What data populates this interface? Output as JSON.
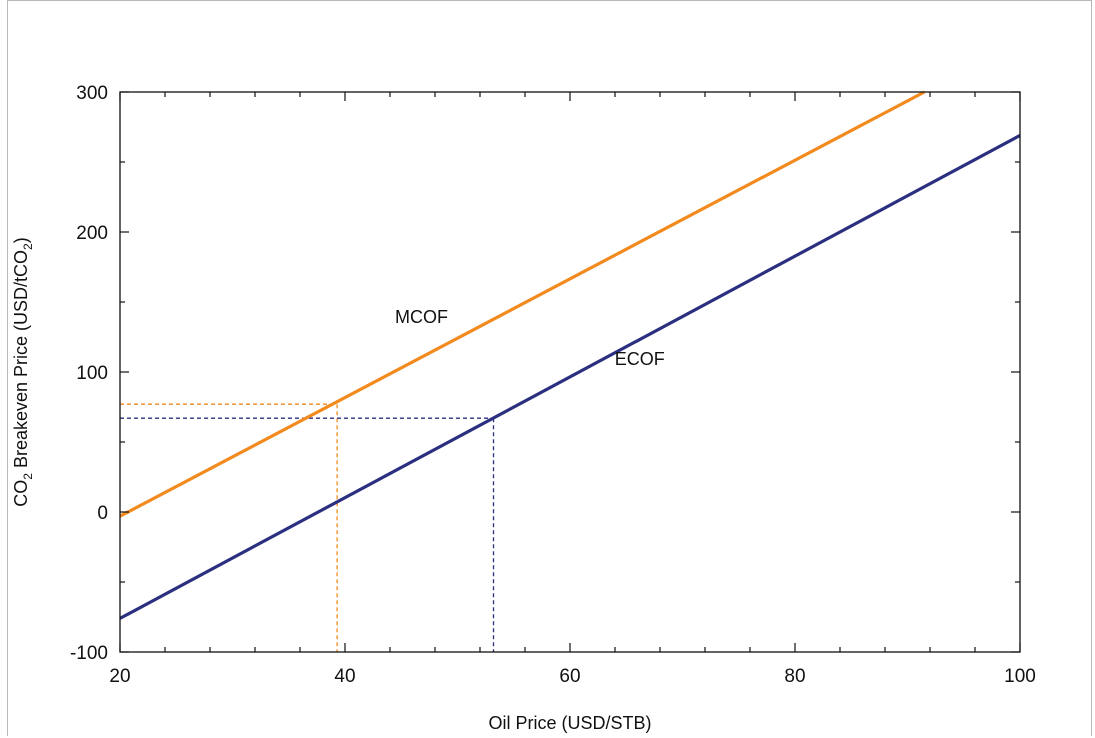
{
  "chart_data": {
    "type": "line",
    "title": "",
    "xlabel": "Oil Price (USD/STB)",
    "ylabel": {
      "parts": [
        "CO",
        "2",
        " Breakeven Price (USD/tCO",
        "2",
        ")"
      ]
    },
    "xlim": [
      20,
      100
    ],
    "ylim": [
      -100,
      300
    ],
    "x_ticks": [
      "20",
      "40",
      "60",
      "80",
      "100"
    ],
    "y_ticks": [
      "-100",
      "0",
      "100",
      "200",
      "300"
    ],
    "grid": false,
    "legend": "none",
    "series": [
      {
        "name": "MCOF",
        "color": "#f28a1e",
        "x": [
          20,
          91.5
        ],
        "y": [
          -3,
          300
        ]
      },
      {
        "name": "ECOF",
        "color": "#2b2f7f",
        "x": [
          20,
          100
        ],
        "y": [
          -76,
          269
        ]
      }
    ],
    "reference_lines": [
      {
        "series": "MCOF",
        "color": "#f28a1e",
        "x": 39.3,
        "y": 77
      },
      {
        "series": "ECOF",
        "color": "#2b2f7f",
        "x": 53.2,
        "y": 67
      }
    ]
  }
}
